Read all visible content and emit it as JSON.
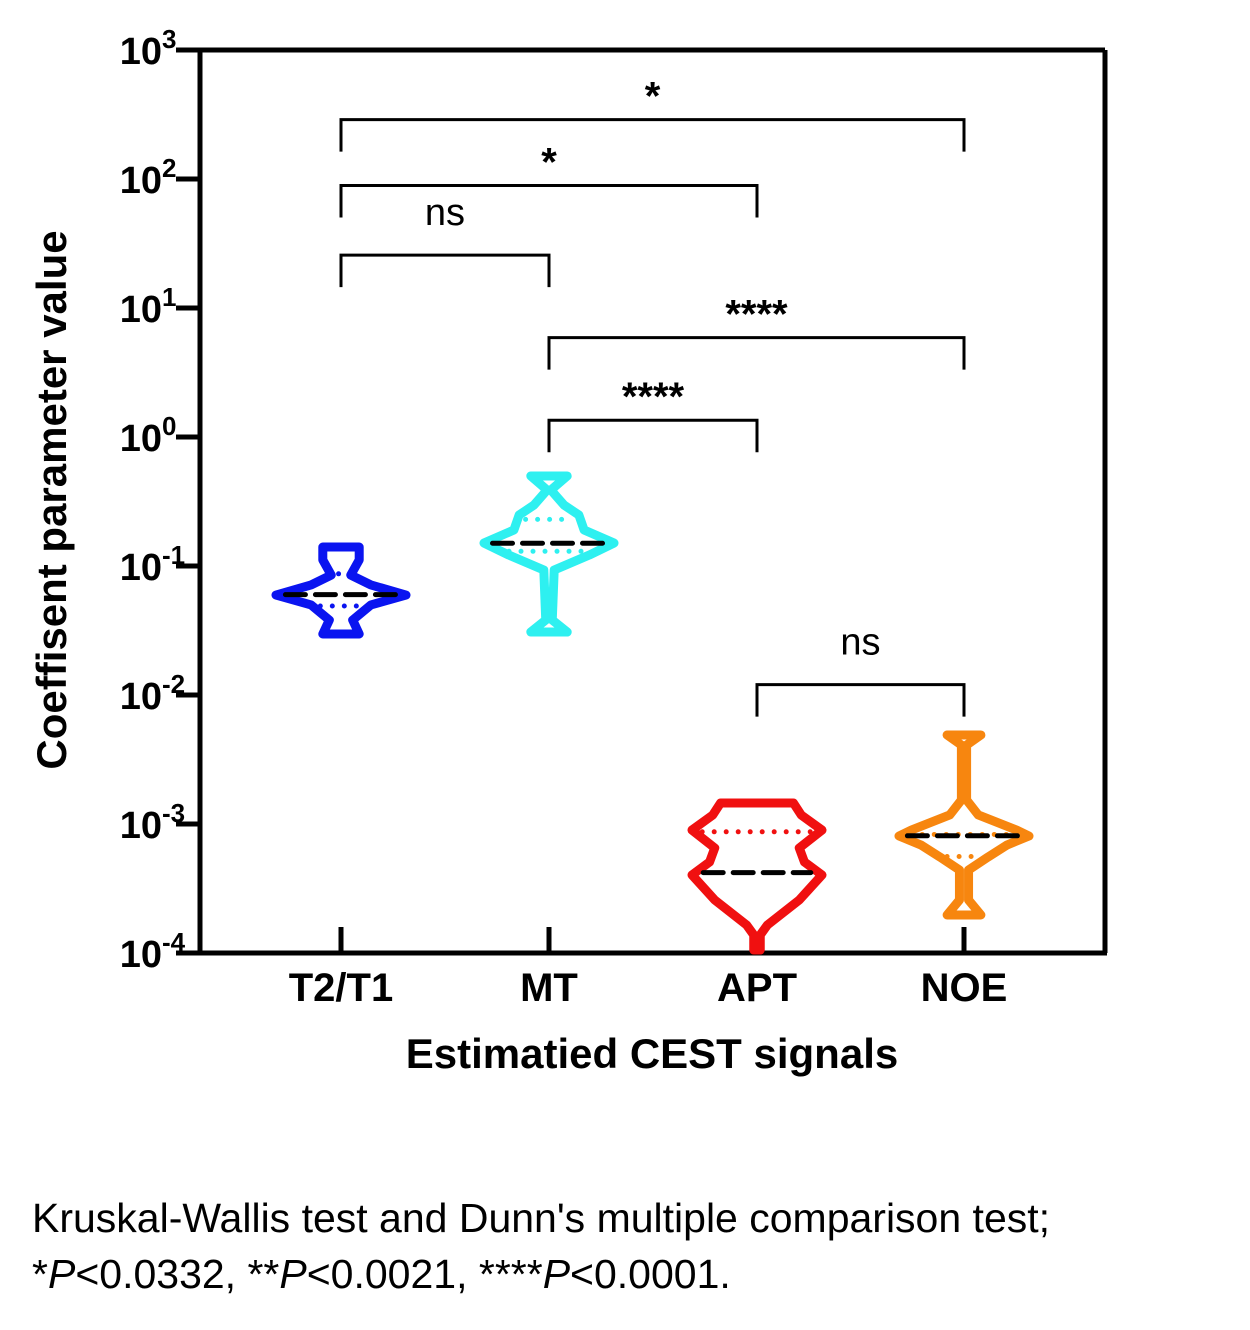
{
  "chart_data": {
    "type": "violin",
    "title": "",
    "xlabel": "Estimatied CEST signals",
    "ylabel": "Coeffisent parameter value",
    "yscale": "log",
    "ylim": [
      0.0001,
      1000
    ],
    "yticks": [
      {
        "base": "10",
        "exp": "-4",
        "value": 0.0001
      },
      {
        "base": "10",
        "exp": "-3",
        "value": 0.001
      },
      {
        "base": "10",
        "exp": "-2",
        "value": 0.01
      },
      {
        "base": "10",
        "exp": "-1",
        "value": 0.1
      },
      {
        "base": "10",
        "exp": "0",
        "value": 1
      },
      {
        "base": "10",
        "exp": "1",
        "value": 10
      },
      {
        "base": "10",
        "exp": "2",
        "value": 100
      },
      {
        "base": "10",
        "exp": "3",
        "value": 1000
      }
    ],
    "categories": [
      "T2/T1",
      "MT",
      "APT",
      "NOE"
    ],
    "series": [
      {
        "name": "T2/T1",
        "color": "#0a14f0",
        "min": 0.03,
        "max": 0.14,
        "median": 0.06,
        "q1": 0.049,
        "q3": 0.087,
        "density": [
          [
            -0.853,
            0.28
          ],
          [
            -0.953,
            0.28
          ],
          [
            -1.07,
            0.15
          ],
          [
            -1.147,
            0.46
          ],
          [
            -1.225,
            1
          ],
          [
            -1.302,
            0.46
          ],
          [
            -1.419,
            0.18
          ],
          [
            -1.527,
            0.28
          ]
        ]
      },
      {
        "name": "MT",
        "color": "#2ef0f0",
        "min": 0.031,
        "max": 0.5,
        "median": 0.15,
        "q1": 0.13,
        "q3": 0.23,
        "density": [
          [
            -0.302,
            0.28
          ],
          [
            -0.411,
            0.03
          ],
          [
            -0.527,
            0.23
          ],
          [
            -0.605,
            0.46
          ],
          [
            -0.721,
            0.54
          ],
          [
            -0.822,
            1
          ],
          [
            -0.915,
            0.62
          ],
          [
            -1.031,
            0.08
          ],
          [
            -1.419,
            0.05
          ],
          [
            -1.512,
            0.28
          ]
        ]
      },
      {
        "name": "APT",
        "color": "#f01010",
        "min": 0.0001,
        "max": 0.0014,
        "median": 0.00042,
        "q3": 0.00087,
        "density": [
          [
            -2.837,
            0.56
          ],
          [
            -2.93,
            0.68
          ],
          [
            -3.047,
            1
          ],
          [
            -3.186,
            0.65
          ],
          [
            -3.295,
            0.73
          ],
          [
            -3.395,
            1
          ],
          [
            -3.589,
            0.65
          ],
          [
            -3.783,
            0.16
          ],
          [
            -3.86,
            0.05
          ],
          [
            -3.977,
            0.05
          ]
        ]
      },
      {
        "name": "NOE",
        "color": "#f7860f",
        "min": 0.0002,
        "max": 0.005,
        "median": 0.00081,
        "q1": 0.00056,
        "q3": 0.00083,
        "density": [
          [
            -2.31,
            0.26
          ],
          [
            -2.388,
            0.04
          ],
          [
            -2.814,
            0.04
          ],
          [
            -2.93,
            0.22
          ],
          [
            -3.047,
            0.81
          ],
          [
            -3.093,
            1
          ],
          [
            -3.163,
            0.66
          ],
          [
            -3.256,
            0.37
          ],
          [
            -3.357,
            0.07
          ],
          [
            -3.589,
            0.07
          ],
          [
            -3.705,
            0.26
          ]
        ]
      }
    ],
    "comparisons": [
      {
        "from": "T2/T1",
        "to": "NOE",
        "label": "*",
        "level_log10": 2.46
      },
      {
        "from": "T2/T1",
        "to": "APT",
        "label": "*",
        "level_log10": 1.95
      },
      {
        "from": "T2/T1",
        "to": "MT",
        "label": "ns",
        "level_log10": 1.41
      },
      {
        "from": "MT",
        "to": "NOE",
        "label": "****",
        "level_log10": 0.77
      },
      {
        "from": "MT",
        "to": "APT",
        "label": "****",
        "level_log10": 0.13
      },
      {
        "from": "APT",
        "to": "NOE",
        "label": "ns",
        "level_log10": -1.92
      }
    ]
  },
  "footnote": {
    "line1": "Kruskal-Wallis test and Dunn's multiple comparison test;",
    "line2_parts": [
      "*",
      "P",
      "<0.0332, **",
      "P",
      "<0.0021, ****",
      "P",
      "<0.0001."
    ]
  }
}
